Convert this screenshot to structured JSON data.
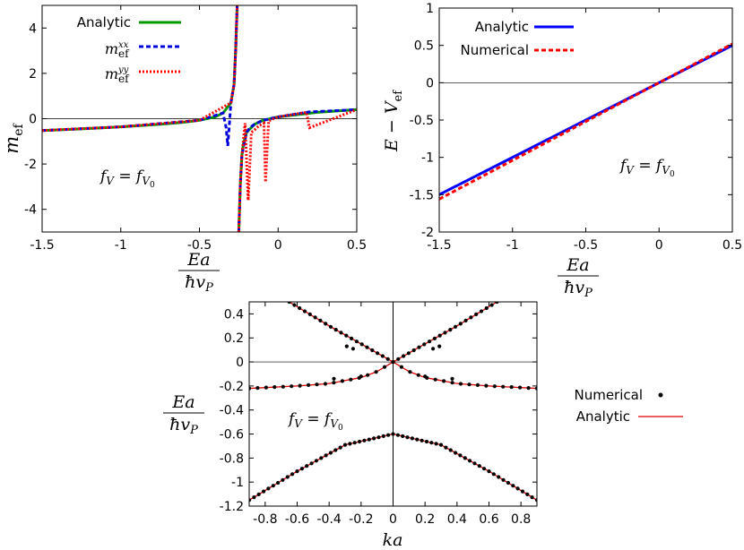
{
  "chart_data": [
    {
      "type": "line",
      "panel": "top-left",
      "ylabel": "m_ef",
      "xlabel": "Ea / ħv_P",
      "annotation": "f_V = f_V0",
      "xlim": [
        -1.5,
        0.5
      ],
      "ylim": [
        -5,
        5
      ],
      "xticks": [
        "-1.5",
        "-1",
        "-0.5",
        "0",
        "0.5"
      ],
      "yticks": [
        "4",
        "2",
        "0",
        "-2",
        "-4"
      ],
      "legend_position": "top-left",
      "series": [
        {
          "name": "Analytic",
          "color": "#009900",
          "style": "solid",
          "x": [
            -1.5,
            -1.25,
            -1.0,
            -0.75,
            -0.6,
            -0.5,
            -0.4,
            -0.35,
            -0.3,
            -0.28,
            -0.27,
            -0.26,
            -0.25,
            -0.24,
            -0.23,
            -0.22,
            -0.2,
            -0.15,
            -0.1,
            0.0,
            0.25,
            0.5
          ],
          "y": [
            -0.52,
            -0.45,
            -0.36,
            -0.25,
            -0.16,
            -0.07,
            0.08,
            0.25,
            0.7,
            1.5,
            3.0,
            5.0,
            -5.0,
            -2.9,
            -1.6,
            -1.1,
            -0.6,
            -0.25,
            -0.08,
            0.08,
            0.28,
            0.4
          ]
        },
        {
          "name": "m_ef^xx",
          "color": "#0000dd",
          "style": "dashed",
          "x": [
            -1.5,
            -1.0,
            -0.5,
            -0.35,
            -0.33,
            -0.32,
            -0.31,
            -0.3,
            -0.28,
            -0.27,
            -0.26,
            -0.25,
            -0.24,
            -0.23,
            -0.2,
            -0.18,
            -0.15,
            -0.1,
            0.0,
            0.2,
            0.5
          ],
          "y": [
            -0.52,
            -0.36,
            -0.07,
            0.25,
            -0.4,
            -1.2,
            -0.3,
            0.7,
            1.5,
            3.0,
            5.0,
            -5.0,
            -2.9,
            -1.6,
            -0.6,
            -0.4,
            -0.25,
            -0.08,
            0.08,
            0.3,
            0.4
          ]
        },
        {
          "name": "m_ef^yy",
          "color": "#ff0000",
          "style": "dotted",
          "x": [
            -1.5,
            -1.0,
            -0.5,
            -0.3,
            -0.28,
            -0.27,
            -0.26,
            -0.25,
            -0.24,
            -0.23,
            -0.21,
            -0.19,
            -0.17,
            -0.15,
            -0.12,
            -0.09,
            -0.08,
            -0.06,
            -0.03,
            0.0,
            0.18,
            0.2,
            0.5
          ],
          "y": [
            -0.52,
            -0.36,
            -0.07,
            0.7,
            1.5,
            3.0,
            5.0,
            -5.0,
            -2.9,
            -1.6,
            -0.2,
            -3.6,
            -0.6,
            -0.5,
            -0.3,
            -0.2,
            -2.8,
            -0.1,
            0.0,
            0.08,
            0.28,
            -0.4,
            0.4
          ]
        }
      ]
    },
    {
      "type": "line",
      "panel": "top-right",
      "ylabel": "E − V_ef",
      "xlabel": "Ea / ħv_P",
      "annotation": "f_V = f_V0",
      "xlim": [
        -1.5,
        0.5
      ],
      "ylim": [
        -2,
        1
      ],
      "xticks": [
        "-1.5",
        "-1",
        "-0.5",
        "0",
        "0.5"
      ],
      "yticks": [
        "1",
        "0.5",
        "0",
        "-0.5",
        "-1",
        "-1.5",
        "-2"
      ],
      "legend_position": "top-left",
      "series": [
        {
          "name": "Analytic",
          "color": "#0000ff",
          "style": "solid",
          "x": [
            -1.5,
            0.5
          ],
          "y": [
            -1.5,
            0.5
          ]
        },
        {
          "name": "Numerical",
          "color": "#ff0000",
          "style": "dashed",
          "x": [
            -1.5,
            -1.0,
            -0.5,
            0.0,
            0.5
          ],
          "y": [
            -1.56,
            -1.04,
            -0.52,
            0.0,
            0.52
          ]
        }
      ]
    },
    {
      "type": "scatter",
      "panel": "bottom",
      "ylabel": "Ea / ħv_P",
      "xlabel": "ka",
      "annotation": "f_V = f_V0",
      "xlim": [
        -0.9,
        0.9
      ],
      "ylim": [
        -1.2,
        0.5
      ],
      "xticks": [
        "-0.8",
        "-0.6",
        "-0.4",
        "-0.2",
        "0",
        "0.2",
        "0.4",
        "0.6",
        "0.8"
      ],
      "yticks": [
        "0.4",
        "0.2",
        "0",
        "-0.2",
        "-0.4",
        "-0.6",
        "-0.8",
        "-1",
        "-1.2"
      ],
      "legend_position": "right",
      "series": [
        {
          "name": "Numerical",
          "color": "#000000",
          "style": "points"
        },
        {
          "name": "Analytic",
          "color": "#dd0000",
          "style": "solid"
        }
      ],
      "bands": [
        {
          "kind": "cone_upper",
          "ka": [
            0.0,
            0.2,
            0.4,
            0.65
          ],
          "E": [
            0.0,
            0.15,
            0.3,
            0.5
          ]
        },
        {
          "kind": "middle",
          "ka": [
            0.0,
            0.1,
            0.2,
            0.4,
            0.6,
            0.9
          ],
          "E": [
            0.0,
            -0.08,
            -0.13,
            -0.18,
            -0.2,
            -0.22
          ]
        },
        {
          "kind": "lower",
          "ka": [
            -0.9,
            -0.6,
            -0.3,
            0.0,
            0.3,
            0.6,
            0.9
          ],
          "E": [
            -1.15,
            -0.91,
            -0.69,
            -0.6,
            -0.69,
            -0.91,
            -1.15
          ]
        }
      ]
    }
  ],
  "legend": {
    "p1": [
      "Analytic",
      "m",
      "m"
    ],
    "p1_sup": [
      "",
      "xx",
      "yy"
    ],
    "p1_sub": [
      "",
      "ef",
      "ef"
    ],
    "p2": [
      "Analytic",
      "Numerical"
    ],
    "p3": [
      "Numerical",
      "Analytic"
    ]
  }
}
